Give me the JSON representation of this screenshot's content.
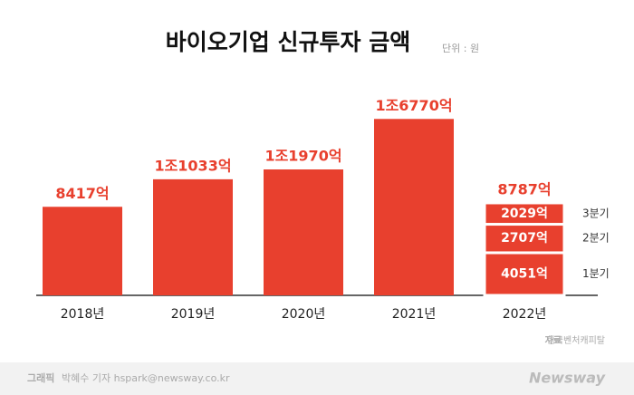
{
  "chart_data": {
    "type": "bar",
    "title": "바이오기업 신규투자 금액",
    "unit": "단위 : 원",
    "categories": [
      "2018년",
      "2019년",
      "2020년",
      "2021년",
      "2022년"
    ],
    "values": [
      8417,
      11033,
      11970,
      16770,
      8787
    ],
    "value_labels": [
      "8417억",
      "1조1033억",
      "1조1970억",
      "1조6770억",
      "8787억"
    ],
    "color": "#e8402e",
    "ylim": [
      0,
      18000
    ],
    "stack": {
      "names": [
        "1분기",
        "2분기",
        "3분기"
      ],
      "values": [
        4051,
        2707,
        2029
      ],
      "value_labels": [
        "4051억",
        "2707억",
        "2029억"
      ]
    },
    "source_label": "자료",
    "source": "한국벤처캐피탈",
    "credit_label": "그래픽",
    "credit": "박혜수 기자 hspark@newsway.co.kr",
    "logo": "Newsway"
  }
}
